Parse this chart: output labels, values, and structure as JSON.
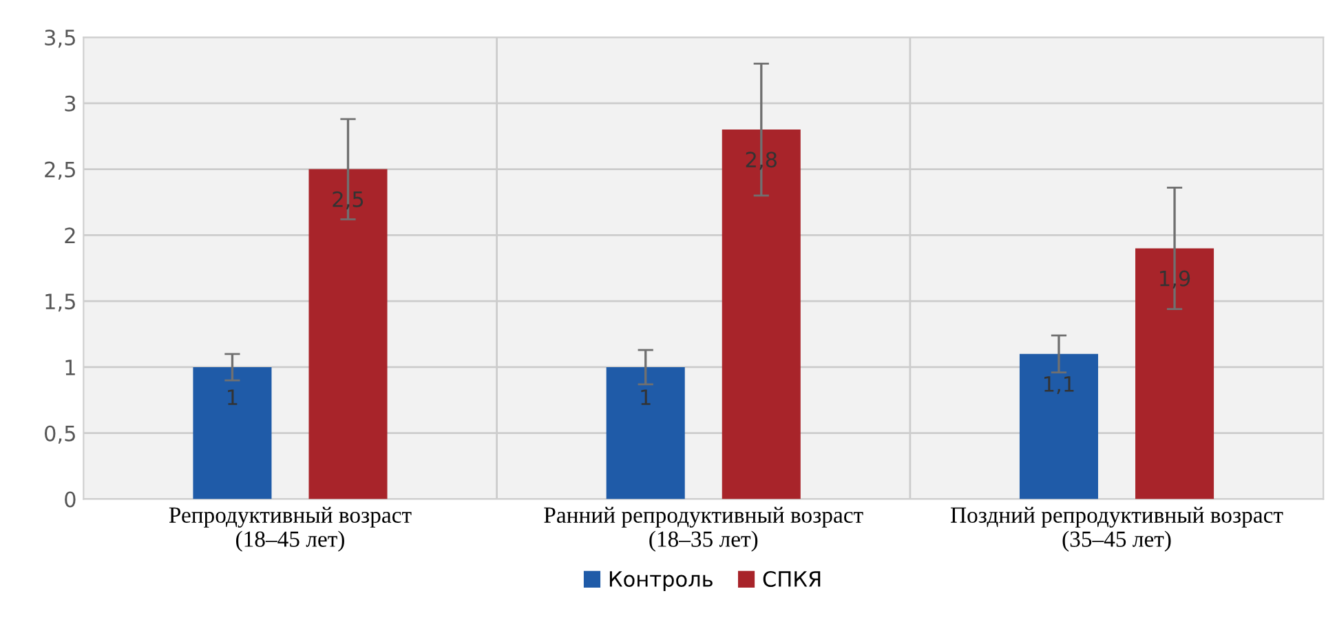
{
  "chart_data": {
    "type": "bar",
    "categories": [
      "Репродуктивный возраст\n(18–45 лет)",
      "Ранний репродуктивный возраст\n(18–35 лет)",
      "Поздний репродуктивный возраст\n(35–45 лет)"
    ],
    "series": [
      {
        "name": "Контроль",
        "color": "#1f5ba8",
        "values": [
          1,
          1,
          1.1
        ],
        "errors": [
          0.1,
          0.13,
          0.14
        ],
        "value_labels": [
          "1",
          "1",
          "1,1"
        ]
      },
      {
        "name": "СПКЯ",
        "color": "#a8242a",
        "values": [
          2.5,
          2.8,
          1.9
        ],
        "errors": [
          0.38,
          0.5,
          0.46
        ],
        "value_labels": [
          "2,5",
          "2,8",
          "1,9"
        ]
      }
    ],
    "ylim": [
      0,
      3.5
    ],
    "yticks": [
      0,
      {
        "value": 0.5,
        "label": "0,5"
      },
      1,
      {
        "value": 1.5,
        "label": "1,5"
      },
      2,
      {
        "value": 2.5,
        "label": "2,5"
      },
      3,
      {
        "value": 3.5,
        "label": "3,5"
      }
    ],
    "grid": true,
    "legend": "bottom"
  }
}
